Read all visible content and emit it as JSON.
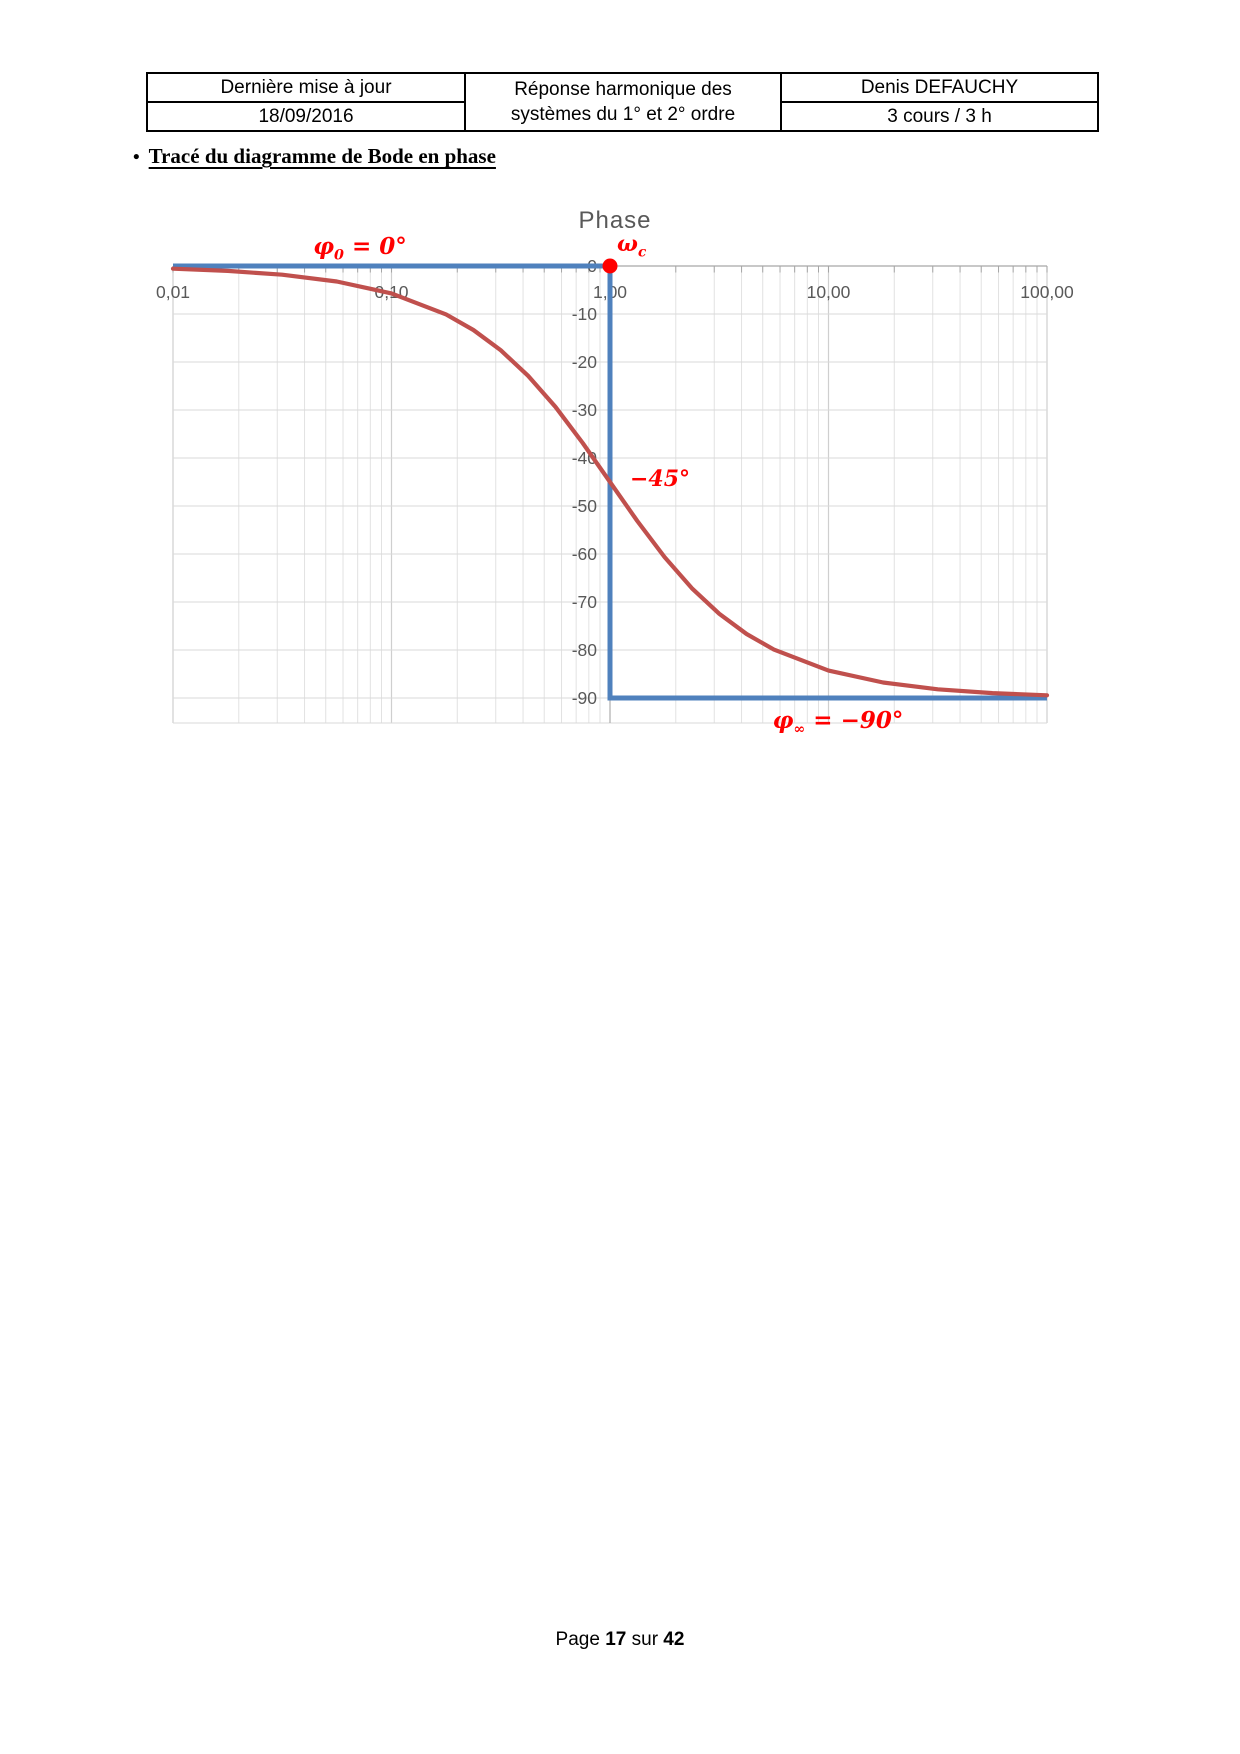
{
  "header_table": {
    "col1": {
      "row1": "Dernière mise à jour",
      "row2": "18/09/2016"
    },
    "col2": {
      "line1": "Réponse harmonique des",
      "line2": "systèmes du 1° et 2° ordre"
    },
    "col3": {
      "row1": "Denis DEFAUCHY",
      "row2": "3 cours / 3 h"
    }
  },
  "heading": {
    "bullet": "•",
    "text": "Tracé du diagramme de Bode en phase"
  },
  "chart_data": {
    "type": "line",
    "title": "Phase",
    "x_axis": {
      "scale": "log",
      "min": 0.01,
      "max": 100,
      "tick_values": [
        0.01,
        0.1,
        1,
        10,
        100
      ],
      "tick_labels": [
        "0,01",
        "0,10",
        "1,00",
        "10,00",
        "100,00"
      ]
    },
    "y_axis": {
      "unit": "degrees",
      "min": -95,
      "max": 0,
      "tick_values": [
        0,
        -10,
        -20,
        -30,
        -40,
        -50,
        -60,
        -70,
        -80,
        -90
      ],
      "tick_labels": [
        "0",
        "-10",
        "-20",
        "-30",
        "-40",
        "-50",
        "-60",
        "-70",
        "-80",
        "-90"
      ]
    },
    "grid": true,
    "legend_position": "none",
    "series": [
      {
        "name": "asymptotes",
        "color": "#4f81bd",
        "points": [
          [
            0.01,
            0
          ],
          [
            1,
            0
          ],
          [
            1,
            -90
          ],
          [
            100,
            -90
          ]
        ]
      },
      {
        "name": "phase-curve",
        "color": "#c0504d",
        "points": [
          [
            0.01,
            -0.57
          ],
          [
            0.0178,
            -1.02
          ],
          [
            0.0316,
            -1.81
          ],
          [
            0.0562,
            -3.22
          ],
          [
            0.1,
            -5.71
          ],
          [
            0.1778,
            -10.08
          ],
          [
            0.2371,
            -13.34
          ],
          [
            0.3162,
            -17.55
          ],
          [
            0.4217,
            -22.87
          ],
          [
            0.5623,
            -29.33
          ],
          [
            0.7499,
            -36.87
          ],
          [
            1,
            -45
          ],
          [
            1.3335,
            -53.13
          ],
          [
            1.7783,
            -60.65
          ],
          [
            2.3714,
            -67.14
          ],
          [
            3.1623,
            -72.45
          ],
          [
            4.217,
            -76.66
          ],
          [
            5.6234,
            -79.92
          ],
          [
            10,
            -84.29
          ],
          [
            17.783,
            -86.78
          ],
          [
            31.623,
            -88.19
          ],
          [
            56.234,
            -88.98
          ],
          [
            100,
            -89.43
          ]
        ]
      }
    ],
    "marker": {
      "x": 1,
      "y": 0,
      "color": "#ff0000"
    },
    "annotations": [
      {
        "id": "phi0",
        "text": "φ",
        "sub": "0",
        "rest": " = 0°",
        "color": "#ff0000"
      },
      {
        "id": "omega-c",
        "text": "ω",
        "sub": "c",
        "rest": "",
        "color": "#ff0000"
      },
      {
        "id": "minus-45",
        "text": "−45°",
        "color": "#ff0000"
      },
      {
        "id": "phi-inf",
        "text": "φ",
        "sub": "∞",
        "rest": " = −90°",
        "color": "#ff0000"
      }
    ],
    "colors": {
      "grid": "#d9d9d9",
      "axis": "#a6a6a6",
      "tick_text": "#595959",
      "title_text": "#595959"
    }
  },
  "footer": {
    "prefix": "Page ",
    "page": "17",
    "middle": " sur ",
    "total": "42"
  }
}
